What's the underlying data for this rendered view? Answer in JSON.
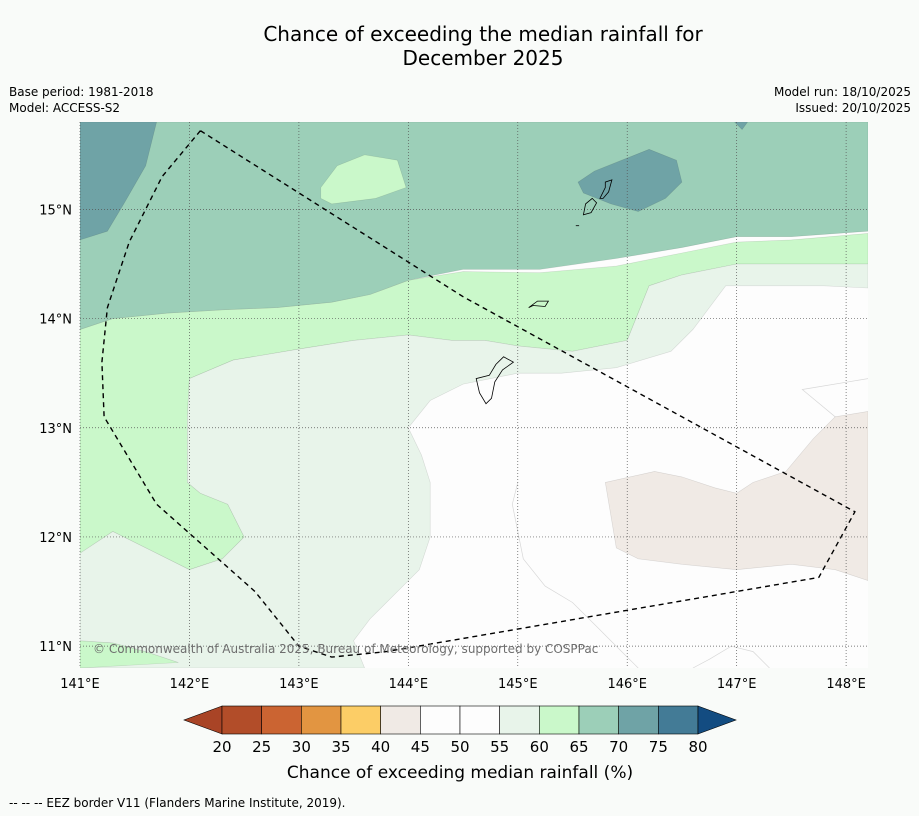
{
  "title": {
    "line1": "Chance of exceeding the median rainfall for",
    "line2": "December 2025"
  },
  "meta": {
    "base_period": "Base period: 1981-2018",
    "model": "Model: ACCESS-S2",
    "model_run": "Model run: 18/10/2025",
    "issued": "Issued: 20/10/2025"
  },
  "map": {
    "lon_range": [
      141.0,
      148.2
    ],
    "lat_range": [
      10.8,
      15.8
    ],
    "lon_ticks": [
      {
        "value": 141,
        "label": "141°E"
      },
      {
        "value": 142,
        "label": "142°E"
      },
      {
        "value": 143,
        "label": "143°E"
      },
      {
        "value": 144,
        "label": "144°E"
      },
      {
        "value": 145,
        "label": "145°E"
      },
      {
        "value": 146,
        "label": "146°E"
      },
      {
        "value": 147,
        "label": "147°E"
      },
      {
        "value": 148,
        "label": "148°E"
      }
    ],
    "lat_ticks": [
      {
        "value": 15,
        "label": "15°N"
      },
      {
        "value": 14,
        "label": "14°N"
      },
      {
        "value": 13,
        "label": "13°N"
      },
      {
        "value": 12,
        "label": "12°N"
      },
      {
        "value": 11,
        "label": "11°N"
      }
    ],
    "copyright": "© Commonwealth of Australia 2025, Bureau of Meteorology, supported by COSPPac",
    "eez_border": [
      [
        142.1,
        15.72
      ],
      [
        141.75,
        15.3
      ],
      [
        141.45,
        14.7
      ],
      [
        141.25,
        14.1
      ],
      [
        141.2,
        13.6
      ],
      [
        141.22,
        13.1
      ],
      [
        141.7,
        12.3
      ],
      [
        142.6,
        11.5
      ],
      [
        143.0,
        11.0
      ],
      [
        143.3,
        10.9
      ],
      [
        143.8,
        10.95
      ],
      [
        147.75,
        11.63
      ],
      [
        148.08,
        12.23
      ],
      [
        146.5,
        13.1
      ],
      [
        144.5,
        14.2
      ],
      [
        142.1,
        15.72
      ]
    ],
    "islands": [
      [
        [
          144.62,
          13.45
        ],
        [
          144.65,
          13.32
        ],
        [
          144.71,
          13.22
        ],
        [
          144.76,
          13.27
        ],
        [
          144.79,
          13.42
        ],
        [
          144.86,
          13.53
        ],
        [
          144.96,
          13.6
        ],
        [
          144.87,
          13.65
        ],
        [
          144.8,
          13.58
        ],
        [
          144.74,
          13.48
        ],
        [
          144.62,
          13.45
        ]
      ],
      [
        [
          145.1,
          14.1
        ],
        [
          145.18,
          14.16
        ],
        [
          145.28,
          14.16
        ],
        [
          145.25,
          14.11
        ],
        [
          145.14,
          14.12
        ],
        [
          145.1,
          14.1
        ]
      ],
      [
        [
          145.6,
          14.95
        ],
        [
          145.62,
          15.05
        ],
        [
          145.68,
          15.1
        ],
        [
          145.72,
          15.06
        ],
        [
          145.67,
          14.97
        ],
        [
          145.6,
          14.95
        ]
      ],
      [
        [
          145.75,
          15.1
        ],
        [
          145.8,
          15.2
        ],
        [
          145.8,
          15.25
        ],
        [
          145.86,
          15.27
        ],
        [
          145.83,
          15.16
        ],
        [
          145.78,
          15.1
        ],
        [
          145.75,
          15.1
        ]
      ],
      [
        [
          145.53,
          14.85
        ],
        [
          145.56,
          14.85
        ]
      ]
    ],
    "regions": [
      {
        "category": "60-65",
        "color": "#caf8ca",
        "points": [
          [
            141,
            13.9
          ],
          [
            141.3,
            14.0
          ],
          [
            141.8,
            14.05
          ],
          [
            142.3,
            14.08
          ],
          [
            142.8,
            14.1
          ],
          [
            143.3,
            14.15
          ],
          [
            143.65,
            14.22
          ],
          [
            144.0,
            14.35
          ],
          [
            144.5,
            14.43
          ],
          [
            145.2,
            14.42
          ],
          [
            145.9,
            14.48
          ],
          [
            146.5,
            14.6
          ],
          [
            147.0,
            14.7
          ],
          [
            147.5,
            14.72
          ],
          [
            148.2,
            14.78
          ],
          [
            148.2,
            14.5
          ],
          [
            147.5,
            14.5
          ],
          [
            147.0,
            14.5
          ],
          [
            146.5,
            14.4
          ],
          [
            146.2,
            14.3
          ],
          [
            146.0,
            13.8
          ],
          [
            145.5,
            13.7
          ],
          [
            145.0,
            13.75
          ],
          [
            144.7,
            13.8
          ],
          [
            144.4,
            13.8
          ],
          [
            144.0,
            13.85
          ],
          [
            143.5,
            13.8
          ],
          [
            143.0,
            13.72
          ],
          [
            142.4,
            13.62
          ],
          [
            142.0,
            13.45
          ],
          [
            141.98,
            13.1
          ],
          [
            141.98,
            12.5
          ],
          [
            142.1,
            12.4
          ],
          [
            142.35,
            12.3
          ],
          [
            142.5,
            12.0
          ],
          [
            142.3,
            11.8
          ],
          [
            142.0,
            11.7
          ],
          [
            141.6,
            11.9
          ],
          [
            141.3,
            12.05
          ],
          [
            141,
            11.85
          ]
        ]
      },
      {
        "category": "60-65",
        "color": "#caf8ca",
        "points": [
          [
            141,
            11.05
          ],
          [
            141.3,
            11.03
          ],
          [
            141.6,
            10.95
          ],
          [
            141.9,
            10.85
          ],
          [
            142.05,
            10.8
          ],
          [
            141,
            10.8
          ]
        ]
      },
      {
        "category": "65-70",
        "color": "#9ccfb8",
        "points": [
          [
            141,
            15.8
          ],
          [
            148.2,
            15.8
          ],
          [
            148.2,
            14.8
          ],
          [
            147.5,
            14.75
          ],
          [
            147.0,
            14.75
          ],
          [
            146.5,
            14.65
          ],
          [
            145.9,
            14.55
          ],
          [
            145.2,
            14.45
          ],
          [
            144.5,
            14.45
          ],
          [
            144.0,
            14.35
          ],
          [
            143.65,
            14.22
          ],
          [
            143.3,
            14.15
          ],
          [
            142.8,
            14.1
          ],
          [
            142.3,
            14.08
          ],
          [
            141.8,
            14.05
          ],
          [
            141.3,
            14.0
          ],
          [
            141,
            13.9
          ]
        ]
      },
      {
        "category": "70-75",
        "color": "#6fa3a6",
        "points": [
          [
            141,
            15.8
          ],
          [
            141.7,
            15.8
          ],
          [
            141.6,
            15.4
          ],
          [
            141.4,
            15.05
          ],
          [
            141.25,
            14.8
          ],
          [
            141,
            14.72
          ]
        ]
      },
      {
        "category": "70-75",
        "color": "#6fa3a6",
        "points": [
          [
            145.55,
            15.25
          ],
          [
            145.7,
            15.35
          ],
          [
            145.95,
            15.45
          ],
          [
            146.2,
            15.55
          ],
          [
            146.45,
            15.45
          ],
          [
            146.5,
            15.25
          ],
          [
            146.35,
            15.1
          ],
          [
            146.1,
            14.98
          ],
          [
            145.85,
            15.05
          ],
          [
            145.6,
            15.15
          ]
        ]
      },
      {
        "category": "70-75",
        "color": "#6fa3a6",
        "points": [
          [
            146.98,
            15.8
          ],
          [
            147.1,
            15.8
          ],
          [
            147.05,
            15.73
          ]
        ]
      },
      {
        "category": "60-65",
        "color": "#caf8ca",
        "points": [
          [
            143.2,
            15.2
          ],
          [
            143.35,
            15.4
          ],
          [
            143.6,
            15.5
          ],
          [
            143.9,
            15.45
          ],
          [
            143.98,
            15.2
          ],
          [
            143.7,
            15.1
          ],
          [
            143.3,
            15.05
          ],
          [
            143.2,
            15.1
          ]
        ]
      },
      {
        "category": "55-60",
        "color": "#e8f4ea",
        "points": [
          [
            141,
            11.85
          ],
          [
            141.3,
            12.05
          ],
          [
            141.6,
            11.9
          ],
          [
            142.0,
            11.7
          ],
          [
            142.3,
            11.8
          ],
          [
            142.5,
            12.0
          ],
          [
            142.35,
            12.3
          ],
          [
            142.1,
            12.4
          ],
          [
            141.98,
            12.5
          ],
          [
            141.98,
            13.1
          ],
          [
            142.0,
            13.45
          ],
          [
            142.4,
            13.62
          ],
          [
            143.0,
            13.72
          ],
          [
            143.5,
            13.8
          ],
          [
            144.0,
            13.85
          ],
          [
            144.4,
            13.8
          ],
          [
            144.7,
            13.8
          ],
          [
            145.0,
            13.75
          ],
          [
            145.5,
            13.7
          ],
          [
            146.0,
            13.8
          ],
          [
            146.2,
            14.3
          ],
          [
            146.5,
            14.4
          ],
          [
            147.0,
            14.5
          ],
          [
            147.5,
            14.5
          ],
          [
            148.2,
            14.5
          ],
          [
            148.2,
            14.28
          ],
          [
            147.8,
            14.3
          ],
          [
            146.9,
            14.3
          ],
          [
            146.6,
            13.9
          ],
          [
            146.4,
            13.7
          ],
          [
            145.9,
            13.55
          ],
          [
            145.4,
            13.5
          ],
          [
            145.0,
            13.5
          ],
          [
            144.5,
            13.4
          ],
          [
            144.2,
            13.25
          ],
          [
            144.0,
            13.0
          ],
          [
            144.12,
            12.75
          ],
          [
            144.2,
            12.5
          ],
          [
            144.2,
            12.0
          ],
          [
            144.1,
            11.7
          ],
          [
            143.9,
            11.5
          ],
          [
            143.65,
            11.25
          ],
          [
            143.5,
            11.05
          ],
          [
            143.6,
            10.8
          ],
          [
            141,
            10.8
          ],
          [
            141.9,
            10.85
          ],
          [
            141.6,
            10.95
          ],
          [
            141.3,
            11.03
          ],
          [
            141,
            11.05
          ]
        ]
      },
      {
        "category": "45-50",
        "color": "#f0eae5",
        "points": [
          [
            145.8,
            12.5
          ],
          [
            146.25,
            12.6
          ],
          [
            146.5,
            12.55
          ],
          [
            146.8,
            12.45
          ],
          [
            147.0,
            12.4
          ],
          [
            147.15,
            12.5
          ],
          [
            147.45,
            12.6
          ],
          [
            147.7,
            12.9
          ],
          [
            147.9,
            13.1
          ],
          [
            148.2,
            13.15
          ],
          [
            148.2,
            11.6
          ],
          [
            147.9,
            11.7
          ],
          [
            147.5,
            11.75
          ],
          [
            147.0,
            11.7
          ],
          [
            146.5,
            11.75
          ],
          [
            146.1,
            11.8
          ],
          [
            145.9,
            11.9
          ],
          [
            145.85,
            12.2
          ]
        ]
      }
    ],
    "contours": [
      [
        [
          145.0,
          12.5
        ],
        [
          144.95,
          12.3
        ],
        [
          145.05,
          11.8
        ],
        [
          145.25,
          11.55
        ],
        [
          145.5,
          11.4
        ],
        [
          145.75,
          11.15
        ],
        [
          145.95,
          10.95
        ],
        [
          146.1,
          10.8
        ]
      ],
      [
        [
          147.3,
          10.8
        ],
        [
          147.15,
          10.95
        ],
        [
          146.95,
          11.0
        ],
        [
          146.75,
          10.88
        ],
        [
          146.6,
          10.8
        ]
      ],
      [
        [
          147.9,
          13.1
        ],
        [
          147.6,
          13.35
        ],
        [
          148.2,
          13.45
        ]
      ]
    ]
  },
  "colorbar": {
    "colors": [
      "#a94426",
      "#b24d29",
      "#cb6432",
      "#e29541",
      "#fccd66",
      "#f0eae5",
      "#fdfdfd",
      "#fdfdfd",
      "#e8f4ea",
      "#caf8ca",
      "#9ccfb8",
      "#6fa3a6",
      "#437b96",
      "#134c81"
    ],
    "tick_labels": [
      "20",
      "25",
      "30",
      "35",
      "40",
      "45",
      "50",
      "55",
      "60",
      "65",
      "70",
      "75",
      "80"
    ],
    "label": "Chance of exceeding median rainfall (%)"
  },
  "footer": "--  --  -- EEZ border V11 (Flanders Marine Institute, 2019)."
}
